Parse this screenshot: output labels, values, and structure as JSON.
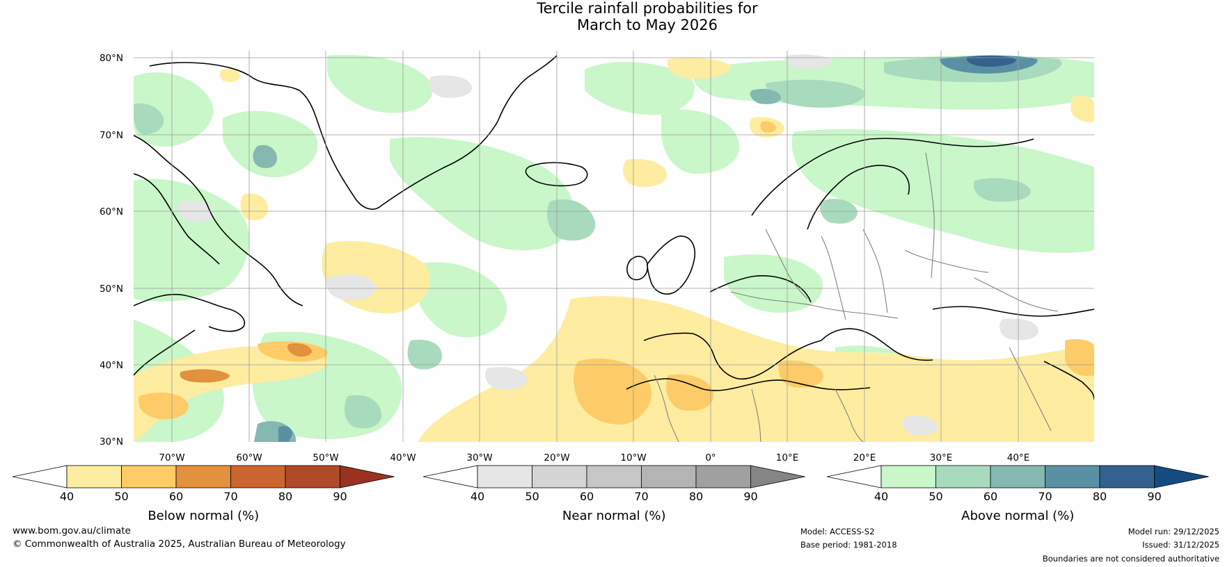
{
  "title": {
    "line1": "Tercile rainfall probabilities for",
    "line2": "March to May 2026"
  },
  "map": {
    "latitude_labels": [
      "80°N",
      "70°N",
      "60°N",
      "50°N",
      "40°N",
      "30°N"
    ],
    "longitude_labels": [
      "70°W",
      "60°W",
      "50°W",
      "40°W",
      "30°W",
      "20°W",
      "10°W",
      "0°",
      "10°E",
      "20°E",
      "30°E",
      "40°E"
    ]
  },
  "colorbars": [
    {
      "title": "Below normal (%)",
      "ticks": [
        "40",
        "50",
        "60",
        "70",
        "80",
        "90"
      ],
      "colors": [
        "#ffffff",
        "#feeda0",
        "#fdcc68",
        "#e2913e",
        "#cc6430",
        "#b04a28",
        "#9a3222"
      ]
    },
    {
      "title": "Near normal (%)",
      "ticks": [
        "40",
        "50",
        "60",
        "70",
        "80",
        "90"
      ],
      "colors": [
        "#ffffff",
        "#e6e6e6",
        "#d4d4d4",
        "#c6c6c6",
        "#b4b4b4",
        "#a0a0a0",
        "#858585"
      ]
    },
    {
      "title": "Above normal (%)",
      "ticks": [
        "40",
        "50",
        "60",
        "70",
        "80",
        "90"
      ],
      "colors": [
        "#ffffff",
        "#c9f7c9",
        "#a8dbbd",
        "#84b8b0",
        "#5a90a4",
        "#336291",
        "#144c82"
      ]
    }
  ],
  "footer": {
    "website": "www.bom.gov.au/climate",
    "copyright": "© Commonwealth of Australia 2025, Australian Bureau of Meteorology",
    "model": "Model: ACCESS-S2",
    "base_period": "Base period: 1981-2018",
    "model_run": "Model run: 29/12/2025",
    "issued": "Issued: 31/12/2025",
    "disclaimer": "Boundaries are not considered authoritative"
  }
}
